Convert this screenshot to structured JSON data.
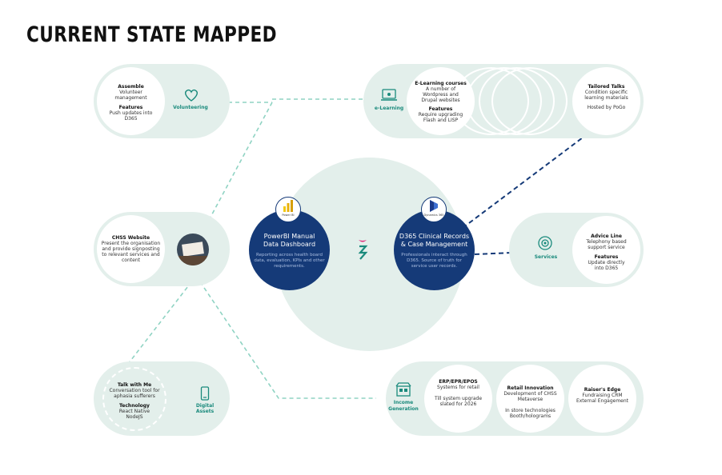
{
  "title": "CURRENT STATE MAPPED",
  "volunteering": {
    "label": "Volunteering",
    "assemble_head": "Assemble",
    "assemble_l1": "Volunteer",
    "assemble_l2": "management",
    "features_head": "Features",
    "features_l1": "Push updates into",
    "features_l2": "D365"
  },
  "elearning": {
    "label": "e-Learning",
    "courses_head": "E-Learning courses",
    "courses_l1": "A number of",
    "courses_l2": "Wordpress and",
    "courses_l3": "Drupal websites",
    "features_head": "Features",
    "features_l1": "Require upgrading",
    "features_l2": "Flash and LISP",
    "tailored_head": "Tailored Talks",
    "tailored_l1": "Condition specific",
    "tailored_l2": "learning materials",
    "tailored_l3": "Hosted by PoGo"
  },
  "website": {
    "head": "CHSS Website",
    "l1": "Present the organisation",
    "l2": "and provide signposting",
    "l3": "to relevant services and",
    "l4": "content"
  },
  "powerbi": {
    "logo_label": "Power BI",
    "title_l1": "PowerBI Manual",
    "title_l2": "Data Dashboard",
    "sub_l1": "Reporting across health board",
    "sub_l2": "data, evaluation, KPIs and other",
    "sub_l3": "requirements."
  },
  "d365": {
    "logo_label": "Dynamics 365",
    "title_l1": "D365 Clinical Records",
    "title_l2": "& Case Management",
    "sub_l1": "Professionals interact through",
    "sub_l2": "D365. Source of truth for",
    "sub_l3": "service user records."
  },
  "services": {
    "label": "Services",
    "advice_head": "Advice Line",
    "advice_l1": "Telephony based",
    "advice_l2": "support service",
    "features_head": "Features",
    "features_l1": "Update directly",
    "features_l2": "into D365"
  },
  "digital": {
    "label_l1": "Digital",
    "label_l2": "Assets",
    "talk_head": "Talk with Me",
    "talk_l1": "Conversation tool for",
    "talk_l2": "aphasia sufferers",
    "tech_head": "Technology",
    "tech_l1": "React Native",
    "tech_l2": "NodeJS"
  },
  "income": {
    "label_l1": "Income",
    "label_l2": "Generation",
    "erp_head": "ERP/EPR/EPOS",
    "erp_l1": "Systems for retail",
    "erp_l2": "Till system upgrade",
    "erp_l3": "slated for 2026",
    "retail_head": "Retail Innovation",
    "retail_l1": "Development of CHSS",
    "retail_l2": "Metaverse",
    "retail_l3": "In store technologies",
    "retail_l4": "Booth/holograms",
    "raiser_head": "Raiser's Edge",
    "raiser_l1": "Fundraising CRM",
    "raiser_l2": "External Engagement"
  },
  "colors": {
    "navy": "#153a78",
    "teal": "#1a8a7c",
    "pale": "#e3efeb",
    "dash_light": "#8fd3c3",
    "pink": "#e0287a"
  }
}
